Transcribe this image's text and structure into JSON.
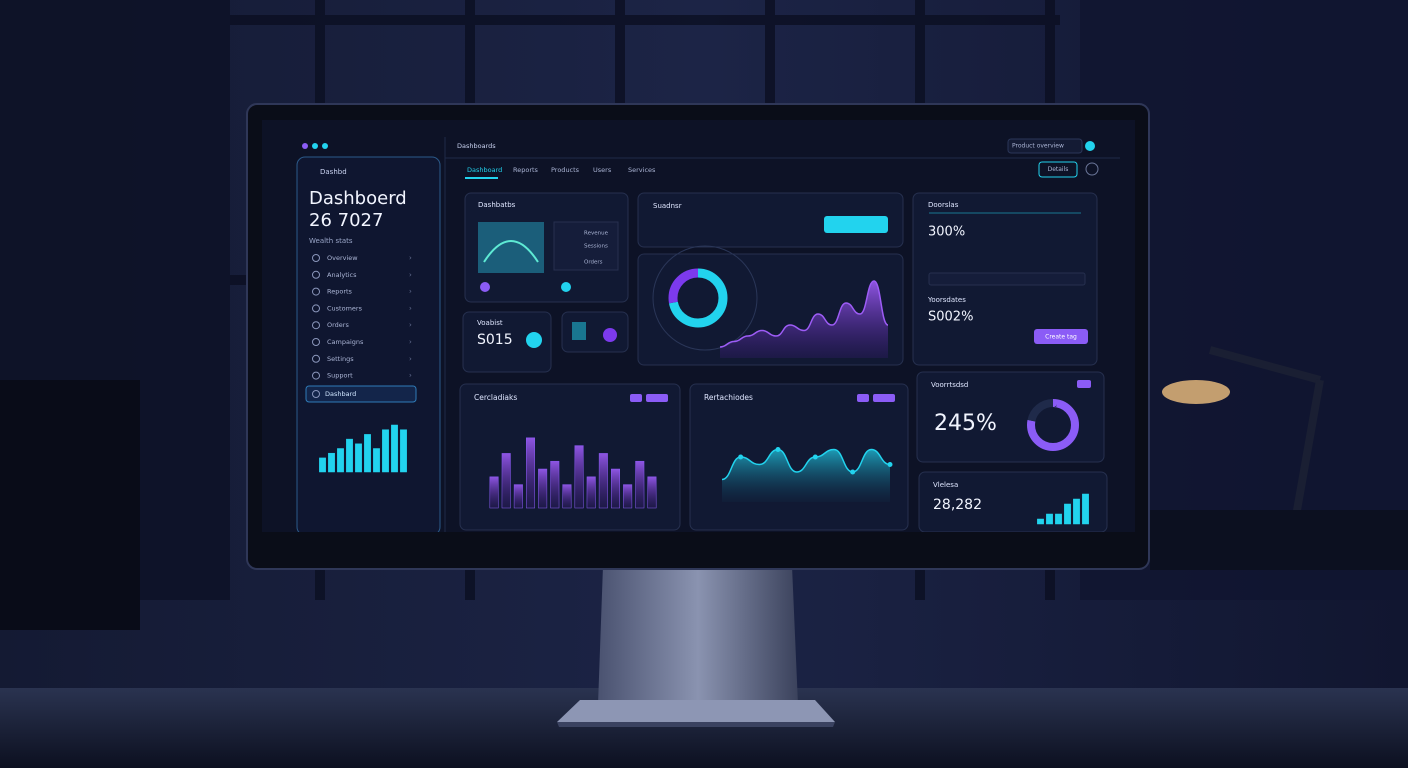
{
  "sidebar": {
    "brand": "Dashbd",
    "title": "Dashboerd",
    "subtitle": "26 7027",
    "caption": "Wealth stats",
    "menu": [
      "Overview",
      "Analytics",
      "Reports",
      "Customers",
      "Orders",
      "Campaigns",
      "Settings",
      "Support"
    ],
    "active_item": "Dashbard"
  },
  "topbar": {
    "title": "Dashboards",
    "tabs": [
      "Dashboard",
      "Reports",
      "Products",
      "Users",
      "Services"
    ],
    "right_label": "Product overview",
    "button": "Details"
  },
  "panels": {
    "overview": {
      "title": "Dashbatbs",
      "item_a": "Revenue",
      "item_b": "Sessions",
      "item_c": "Orders"
    },
    "summary": {
      "title": "Suadnsr"
    },
    "stats": {
      "title": "Doorslas",
      "kpi_a": "300%",
      "kpi_b": "S002%",
      "sub_title": "Yoorsdates",
      "button": "Create tag"
    },
    "visits": {
      "title": "Voabist",
      "kpi": "S015"
    },
    "bars": {
      "title": "Cercladiaks"
    },
    "trend": {
      "title": "Rertachiodes"
    },
    "ratio": {
      "title": "Voorrtsdsd",
      "kpi": "245%"
    },
    "sales": {
      "title": "Vlelesa",
      "kpi": "28,282"
    }
  },
  "chart_data": [
    {
      "type": "bar",
      "values": [
        3,
        4,
        5,
        7,
        6,
        8,
        5,
        9,
        10,
        9
      ],
      "ylim": [
        0,
        10
      ],
      "color": "#22d3ee"
    },
    {
      "type": "bar",
      "values": [
        4,
        7,
        3,
        9,
        5,
        6,
        3,
        8,
        4,
        7,
        5,
        3,
        6,
        4
      ],
      "ylim": [
        0,
        10
      ],
      "color": "#8b5cf6"
    },
    {
      "type": "area",
      "values": [
        3,
        6,
        5,
        7,
        4,
        6,
        7,
        4,
        7,
        5
      ],
      "ylim": [
        0,
        10
      ],
      "color": "#22d3ee"
    },
    {
      "type": "area",
      "values": [
        1,
        1.5,
        2,
        2.5,
        2,
        3,
        2.5,
        4,
        3,
        5,
        4,
        7,
        3
      ],
      "ylim": [
        0,
        8
      ],
      "color": "#9d5cf6"
    },
    {
      "type": "donut",
      "values": [
        72,
        28
      ],
      "colors": [
        "#22d3ee",
        "#7c3aed"
      ]
    },
    {
      "type": "donut",
      "values": [
        78,
        22
      ],
      "colors": [
        "#8b5cf6",
        "#1f2a4a"
      ]
    },
    {
      "type": "bar",
      "values": [
        1,
        2,
        2,
        4,
        5,
        6
      ],
      "ylim": [
        0,
        6
      ],
      "color": "#22d3ee"
    }
  ]
}
